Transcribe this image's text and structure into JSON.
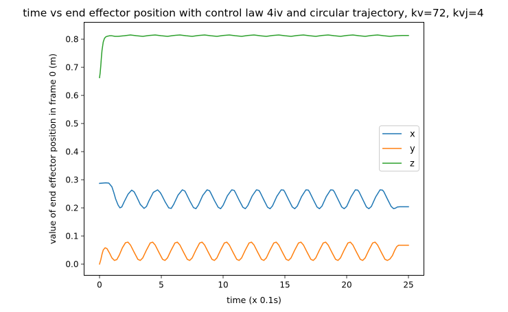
{
  "chart_data": {
    "type": "line",
    "title": "time vs end effector position with control law 4iv and circular trajectory, kv=72, kvj=4",
    "xlabel": "time (x 0.1s)",
    "ylabel": "value of end effector position in frame 0 (m)",
    "xlim": [
      -1.25,
      26.25
    ],
    "ylim": [
      -0.04,
      0.86
    ],
    "xticks": [
      0,
      5,
      10,
      15,
      20,
      25
    ],
    "xtick_labels": [
      "0",
      "5",
      "10",
      "15",
      "20",
      "25"
    ],
    "yticks": [
      0.0,
      0.1,
      0.2,
      0.3,
      0.4,
      0.5,
      0.6,
      0.7,
      0.8
    ],
    "ytick_labels": [
      "0.0",
      "0.1",
      "0.2",
      "0.3",
      "0.4",
      "0.5",
      "0.6",
      "0.7",
      "0.8"
    ],
    "grid": false,
    "legend_position": "center-right",
    "series": [
      {
        "name": "x",
        "color": "#1f77b4",
        "x": [
          0,
          0.5,
          0.75,
          1.0,
          1.15,
          1.3,
          1.5,
          1.65,
          1.8,
          2.0,
          2.3,
          2.6,
          2.8,
          3.0,
          3.3,
          3.6,
          3.8,
          4.0,
          4.35,
          4.7,
          4.9,
          5.0,
          5.3,
          5.6,
          5.8,
          6.0,
          6.35,
          6.7,
          6.9,
          7.0,
          7.3,
          7.6,
          7.8,
          8.0,
          8.35,
          8.7,
          8.9,
          9.0,
          9.3,
          9.6,
          9.8,
          10.0,
          10.35,
          10.7,
          10.9,
          11.0,
          11.3,
          11.6,
          11.8,
          12.0,
          12.35,
          12.7,
          12.9,
          13.0,
          13.3,
          13.6,
          13.8,
          14.0,
          14.35,
          14.7,
          14.9,
          15.0,
          15.3,
          15.6,
          15.8,
          16.0,
          16.35,
          16.7,
          16.9,
          17.0,
          17.3,
          17.6,
          17.8,
          18.0,
          18.35,
          18.7,
          18.9,
          19.0,
          19.3,
          19.6,
          19.8,
          20.0,
          20.35,
          20.7,
          20.9,
          21.0,
          21.3,
          21.6,
          21.8,
          22.0,
          22.35,
          22.7,
          22.9,
          23.0,
          23.3,
          23.6,
          23.8,
          23.95,
          24.1,
          24.3,
          25.0
        ],
        "y": [
          0.287,
          0.289,
          0.288,
          0.275,
          0.255,
          0.232,
          0.21,
          0.2,
          0.203,
          0.222,
          0.248,
          0.263,
          0.257,
          0.24,
          0.212,
          0.198,
          0.205,
          0.225,
          0.255,
          0.264,
          0.255,
          0.248,
          0.222,
          0.2,
          0.198,
          0.212,
          0.245,
          0.264,
          0.26,
          0.252,
          0.225,
          0.201,
          0.197,
          0.21,
          0.244,
          0.264,
          0.261,
          0.253,
          0.226,
          0.202,
          0.197,
          0.209,
          0.243,
          0.264,
          0.262,
          0.254,
          0.227,
          0.202,
          0.197,
          0.208,
          0.242,
          0.264,
          0.262,
          0.255,
          0.228,
          0.202,
          0.197,
          0.207,
          0.241,
          0.264,
          0.263,
          0.256,
          0.229,
          0.203,
          0.197,
          0.206,
          0.24,
          0.264,
          0.263,
          0.256,
          0.229,
          0.203,
          0.197,
          0.206,
          0.24,
          0.264,
          0.263,
          0.257,
          0.23,
          0.203,
          0.197,
          0.205,
          0.239,
          0.264,
          0.263,
          0.257,
          0.23,
          0.203,
          0.197,
          0.205,
          0.239,
          0.264,
          0.263,
          0.258,
          0.231,
          0.205,
          0.197,
          0.199,
          0.203,
          0.204,
          0.204
        ]
      },
      {
        "name": "y",
        "color": "#ff7f0e",
        "x": [
          0,
          0.1,
          0.2,
          0.3,
          0.45,
          0.6,
          0.8,
          1.0,
          1.2,
          1.4,
          1.6,
          1.85,
          2.1,
          2.3,
          2.5,
          2.8,
          3.1,
          3.3,
          3.5,
          3.8,
          4.1,
          4.3,
          4.5,
          4.8,
          5.1,
          5.3,
          5.5,
          5.8,
          6.1,
          6.3,
          6.5,
          6.8,
          7.1,
          7.3,
          7.5,
          7.8,
          8.1,
          8.3,
          8.5,
          8.8,
          9.1,
          9.3,
          9.5,
          9.8,
          10.1,
          10.3,
          10.5,
          10.8,
          11.1,
          11.3,
          11.5,
          11.8,
          12.1,
          12.3,
          12.5,
          12.8,
          13.1,
          13.3,
          13.5,
          13.8,
          14.1,
          14.3,
          14.5,
          14.8,
          15.1,
          15.3,
          15.5,
          15.8,
          16.1,
          16.3,
          16.5,
          16.8,
          17.1,
          17.3,
          17.5,
          17.8,
          18.1,
          18.3,
          18.5,
          18.8,
          19.1,
          19.3,
          19.5,
          19.8,
          20.1,
          20.3,
          20.5,
          20.8,
          21.1,
          21.3,
          21.5,
          21.8,
          22.1,
          22.3,
          22.5,
          22.8,
          23.1,
          23.3,
          23.5,
          23.7,
          23.9,
          24.05,
          24.2,
          25.0
        ],
        "y": [
          0.0,
          0.015,
          0.035,
          0.05,
          0.058,
          0.055,
          0.04,
          0.022,
          0.013,
          0.016,
          0.032,
          0.058,
          0.076,
          0.078,
          0.068,
          0.042,
          0.017,
          0.013,
          0.022,
          0.05,
          0.075,
          0.078,
          0.068,
          0.042,
          0.017,
          0.013,
          0.022,
          0.05,
          0.075,
          0.078,
          0.068,
          0.042,
          0.017,
          0.013,
          0.022,
          0.05,
          0.075,
          0.078,
          0.068,
          0.042,
          0.017,
          0.013,
          0.022,
          0.05,
          0.075,
          0.078,
          0.068,
          0.042,
          0.017,
          0.013,
          0.022,
          0.05,
          0.075,
          0.078,
          0.068,
          0.042,
          0.017,
          0.013,
          0.022,
          0.05,
          0.075,
          0.078,
          0.068,
          0.042,
          0.017,
          0.013,
          0.022,
          0.05,
          0.075,
          0.078,
          0.068,
          0.042,
          0.017,
          0.013,
          0.022,
          0.05,
          0.075,
          0.078,
          0.068,
          0.042,
          0.017,
          0.013,
          0.022,
          0.05,
          0.075,
          0.078,
          0.068,
          0.042,
          0.017,
          0.013,
          0.022,
          0.05,
          0.075,
          0.078,
          0.068,
          0.042,
          0.017,
          0.013,
          0.018,
          0.03,
          0.05,
          0.062,
          0.067,
          0.067
        ]
      },
      {
        "name": "z",
        "color": "#2ca02c",
        "x": [
          0,
          0.05,
          0.1,
          0.15,
          0.2,
          0.3,
          0.4,
          0.5,
          0.6,
          0.8,
          1.0,
          1.25,
          1.5,
          2.0,
          2.5,
          3.0,
          3.5,
          4.0,
          4.5,
          5.0,
          5.5,
          6.0,
          6.5,
          7.0,
          7.5,
          8.0,
          8.5,
          9.0,
          9.5,
          10.0,
          10.5,
          11.0,
          11.5,
          12.0,
          12.5,
          13.0,
          13.5,
          14.0,
          14.5,
          15.0,
          15.5,
          16.0,
          16.5,
          17.0,
          17.5,
          18.0,
          18.5,
          19.0,
          19.5,
          20.0,
          20.5,
          21.0,
          21.5,
          22.0,
          22.5,
          23.0,
          23.5,
          24.0,
          24.5,
          25.0
        ],
        "y": [
          0.663,
          0.68,
          0.705,
          0.735,
          0.76,
          0.79,
          0.803,
          0.808,
          0.81,
          0.812,
          0.812,
          0.81,
          0.81,
          0.812,
          0.815,
          0.812,
          0.81,
          0.813,
          0.815,
          0.812,
          0.81,
          0.813,
          0.815,
          0.812,
          0.81,
          0.813,
          0.815,
          0.812,
          0.81,
          0.813,
          0.815,
          0.812,
          0.81,
          0.813,
          0.815,
          0.812,
          0.81,
          0.813,
          0.815,
          0.812,
          0.81,
          0.813,
          0.815,
          0.812,
          0.81,
          0.813,
          0.815,
          0.812,
          0.81,
          0.813,
          0.815,
          0.812,
          0.81,
          0.813,
          0.815,
          0.812,
          0.81,
          0.812,
          0.813,
          0.813
        ]
      }
    ]
  }
}
